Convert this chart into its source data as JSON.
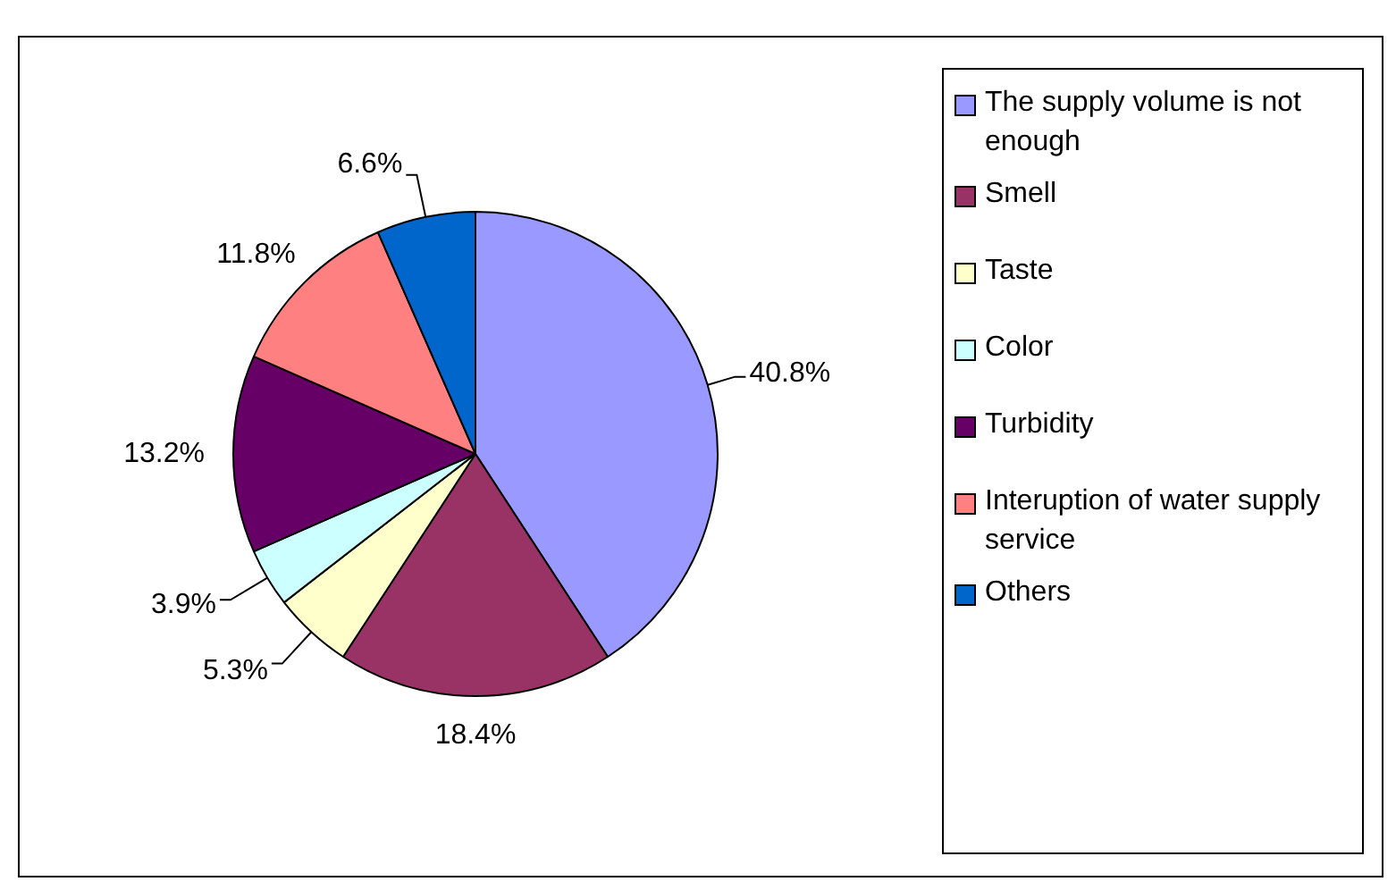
{
  "chart_data": {
    "type": "pie",
    "categories": [
      "The supply volume is not enough",
      "Smell",
      "Taste",
      "Color",
      "Turbidity",
      "Interuption of water supply service",
      "Others"
    ],
    "values": [
      40.8,
      18.4,
      5.3,
      3.9,
      13.2,
      11.8,
      6.6
    ],
    "colors": [
      "#9999ff",
      "#993366",
      "#ffffcc",
      "#ccffff",
      "#660066",
      "#ff8080",
      "#0066cc"
    ],
    "value_labels": [
      "40.8%",
      "18.4%",
      "5.3%",
      "3.9%",
      "13.2%",
      "11.8%",
      "6.6%"
    ],
    "legend": "right"
  }
}
